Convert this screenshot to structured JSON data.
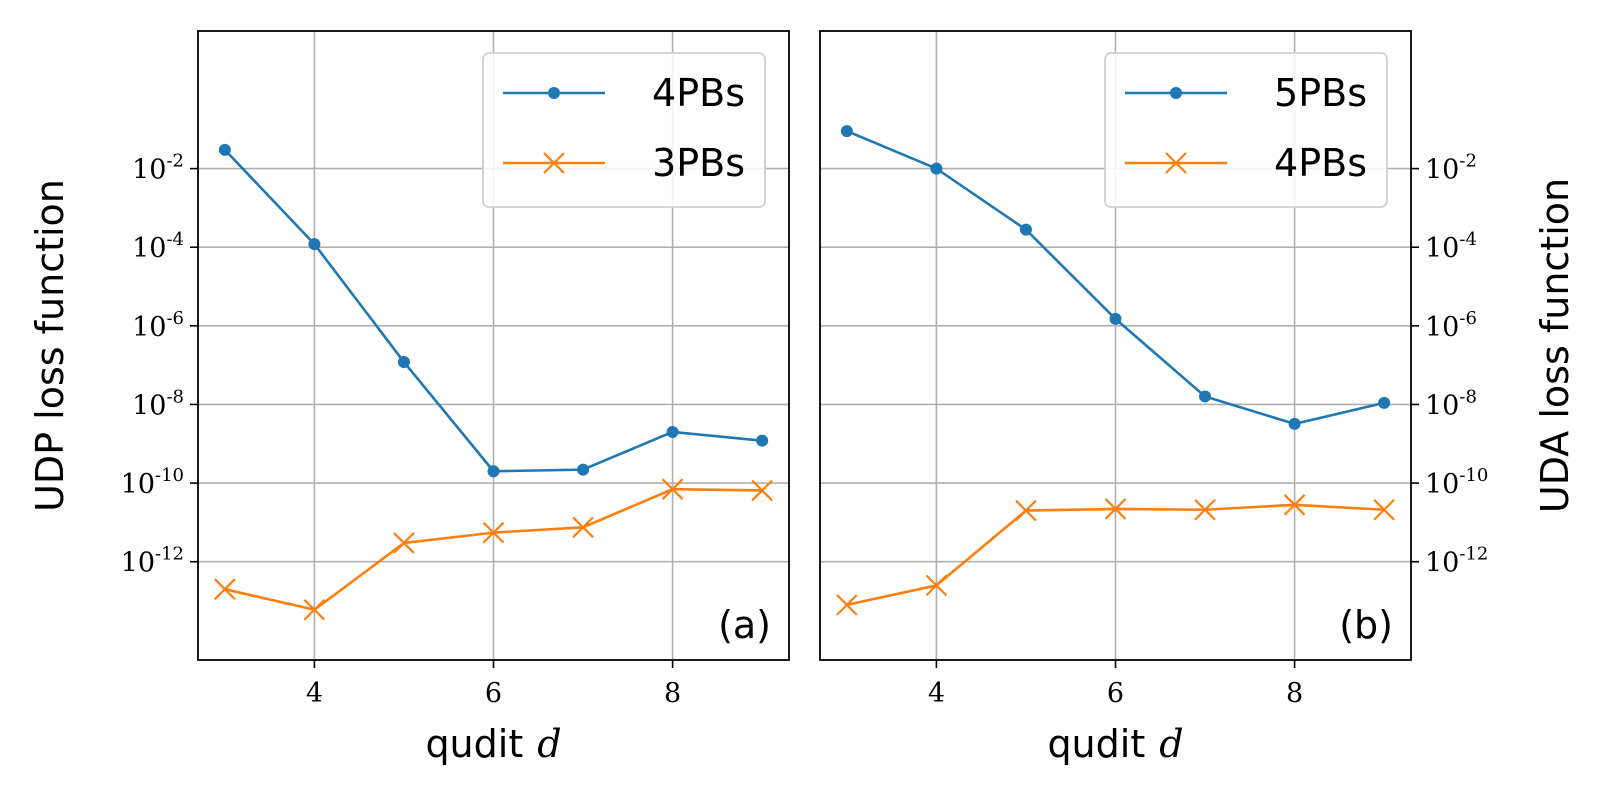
{
  "chart_data": [
    {
      "type": "line",
      "panel_label": "(a)",
      "xlabel": "qudit",
      "xlabel_var": "d",
      "ylabel": "UDP loss function",
      "yscale": "log",
      "xlim": [
        2.7,
        9.3
      ],
      "ylim_exp": [
        -14.5,
        1.5
      ],
      "x_ticks": [
        4,
        6,
        8
      ],
      "y_tick_exps": [
        -12,
        -10,
        -8,
        -6,
        -4,
        -2
      ],
      "y_tick_base": "10",
      "grid": true,
      "legend_position": "top-right",
      "x": [
        3,
        4,
        5,
        6,
        7,
        8,
        9
      ],
      "series": [
        {
          "name": "4PBs",
          "color": "#1f77b4",
          "marker": "dot",
          "values": [
            0.03,
            0.00012,
            1.2e-07,
            2e-10,
            2.2e-10,
            2e-09,
            1.2e-09
          ]
        },
        {
          "name": "3PBs",
          "color": "#ff7f0e",
          "marker": "x",
          "values": [
            2e-13,
            6e-14,
            3e-12,
            5.5e-12,
            7.5e-12,
            7e-11,
            6.5e-11
          ]
        }
      ]
    },
    {
      "type": "line",
      "panel_label": "(b)",
      "xlabel": "qudit",
      "xlabel_var": "d",
      "ylabel": "UDA loss function",
      "yscale": "log",
      "xlim": [
        2.7,
        9.3
      ],
      "ylim_exp": [
        -14.5,
        1.5
      ],
      "x_ticks": [
        4,
        6,
        8
      ],
      "y_tick_exps": [
        -12,
        -10,
        -8,
        -6,
        -4,
        -2
      ],
      "y_tick_base": "10",
      "grid": true,
      "legend_position": "top-right",
      "x": [
        3,
        4,
        5,
        6,
        7,
        8,
        9
      ],
      "series": [
        {
          "name": "5PBs",
          "color": "#1f77b4",
          "marker": "dot",
          "values": [
            0.09,
            0.01,
            0.00028,
            1.5e-06,
            1.6e-08,
            3.2e-09,
            1.1e-08
          ]
        },
        {
          "name": "4PBs",
          "color": "#ff7f0e",
          "marker": "x",
          "values": [
            8e-14,
            2.5e-13,
            2e-11,
            2.2e-11,
            2.1e-11,
            2.8e-11,
            2.1e-11
          ]
        }
      ]
    }
  ]
}
